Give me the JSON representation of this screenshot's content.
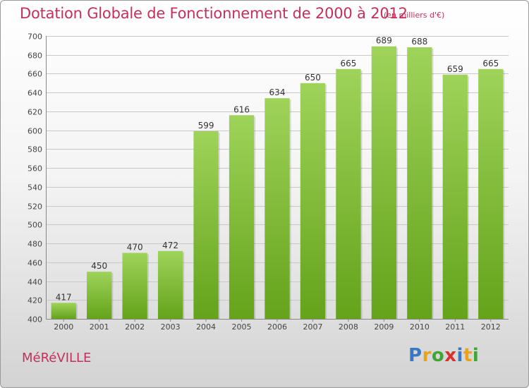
{
  "header": {
    "title": "Dotation Globale de Fonctionnement de 2000 à 2012",
    "subtitle": "(en milliers d'€)"
  },
  "footer": {
    "commune": "MéRéVILLE",
    "brand_letters": [
      "P",
      "r",
      "o",
      "x",
      "i",
      "t",
      "i"
    ],
    "brand_colors": [
      "#3a78c3",
      "#e8a21b",
      "#3fa535",
      "#d9312d",
      "#3a78c3",
      "#e8a21b",
      "#3fa535"
    ]
  },
  "chart_data": {
    "type": "bar",
    "categories": [
      "2000",
      "2001",
      "2002",
      "2003",
      "2004",
      "2005",
      "2006",
      "2007",
      "2008",
      "2009",
      "2010",
      "2011",
      "2012"
    ],
    "values": [
      417,
      450,
      470,
      472,
      599,
      616,
      634,
      650,
      665,
      689,
      688,
      659,
      665
    ],
    "title": "Dotation Globale de Fonctionnement de 2000 à 2012",
    "subtitle": "(en milliers d'€)",
    "xlabel": "",
    "ylabel": "",
    "ylim": [
      400,
      700
    ],
    "yticks": [
      400,
      420,
      440,
      460,
      480,
      500,
      520,
      540,
      560,
      580,
      600,
      620,
      640,
      660,
      680,
      700
    ],
    "grid": true,
    "bar_color_top": "#9fd35a",
    "bar_color_bottom": "#64a31a",
    "legend": "none"
  }
}
